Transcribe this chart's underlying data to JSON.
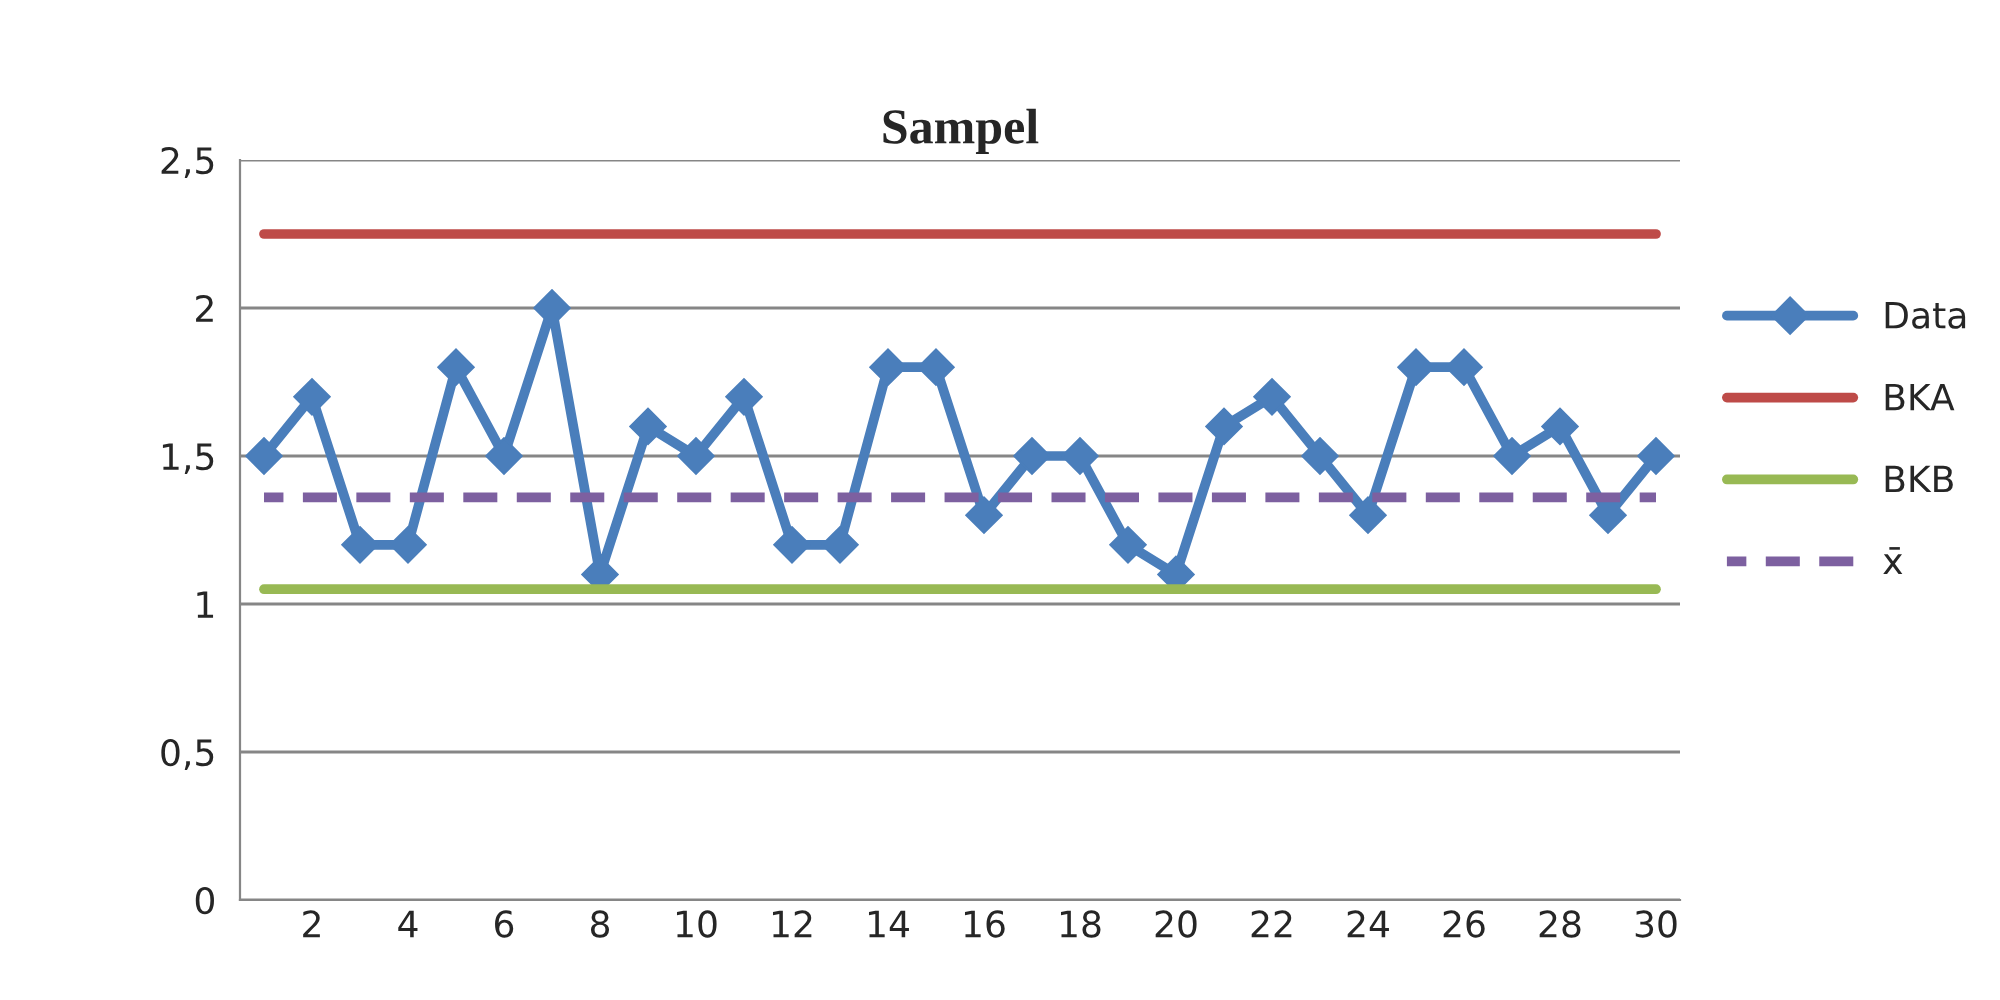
{
  "chart_data": {
    "type": "line",
    "title": "Sampel",
    "categories": [
      null,
      "2",
      null,
      "4",
      null,
      "6",
      null,
      "8",
      null,
      "10",
      null,
      "12",
      null,
      "14",
      null,
      "16",
      null,
      "18",
      null,
      "20",
      null,
      "22",
      null,
      "24",
      null,
      "26",
      null,
      "28",
      null,
      "30"
    ],
    "series": [
      {
        "name": "Data",
        "color": "#4a7ebb",
        "marker": "diamond",
        "values": [
          1.5,
          1.7,
          1.2,
          1.2,
          1.8,
          1.5,
          2.0,
          1.1,
          1.6,
          1.5,
          1.7,
          1.2,
          1.2,
          1.8,
          1.8,
          1.3,
          1.5,
          1.5,
          1.2,
          1.1,
          1.6,
          1.7,
          1.5,
          1.3,
          1.8,
          1.8,
          1.5,
          1.6,
          1.3,
          1.5
        ]
      },
      {
        "name": "BKA",
        "color": "#be4b48",
        "values": [
          2.25,
          2.25,
          2.25,
          2.25,
          2.25,
          2.25,
          2.25,
          2.25,
          2.25,
          2.25,
          2.25,
          2.25,
          2.25,
          2.25,
          2.25,
          2.25,
          2.25,
          2.25,
          2.25,
          2.25,
          2.25,
          2.25,
          2.25,
          2.25,
          2.25,
          2.25,
          2.25,
          2.25,
          2.25,
          2.25
        ]
      },
      {
        "name": "BKB",
        "color": "#98b954",
        "values": [
          1.05,
          1.05,
          1.05,
          1.05,
          1.05,
          1.05,
          1.05,
          1.05,
          1.05,
          1.05,
          1.05,
          1.05,
          1.05,
          1.05,
          1.05,
          1.05,
          1.05,
          1.05,
          1.05,
          1.05,
          1.05,
          1.05,
          1.05,
          1.05,
          1.05,
          1.05,
          1.05,
          1.05,
          1.05,
          1.05
        ]
      },
      {
        "name": "x̄",
        "color": "#7d60a0",
        "line_style": "dashed",
        "values": [
          1.36,
          1.36,
          1.36,
          1.36,
          1.36,
          1.36,
          1.36,
          1.36,
          1.36,
          1.36,
          1.36,
          1.36,
          1.36,
          1.36,
          1.36,
          1.36,
          1.36,
          1.36,
          1.36,
          1.36,
          1.36,
          1.36,
          1.36,
          1.36,
          1.36,
          1.36,
          1.36,
          1.36,
          1.36,
          1.36
        ]
      }
    ],
    "ylim": [
      0,
      2.5
    ],
    "yticks": [
      {
        "value": 0,
        "label": "0"
      },
      {
        "value": 0.5,
        "label": "0,5"
      },
      {
        "value": 1,
        "label": "1"
      },
      {
        "value": 1.5,
        "label": "1,5"
      },
      {
        "value": 2,
        "label": "2"
      },
      {
        "value": 2.5,
        "label": "2,5"
      }
    ],
    "grid": "y",
    "legend": "right"
  }
}
